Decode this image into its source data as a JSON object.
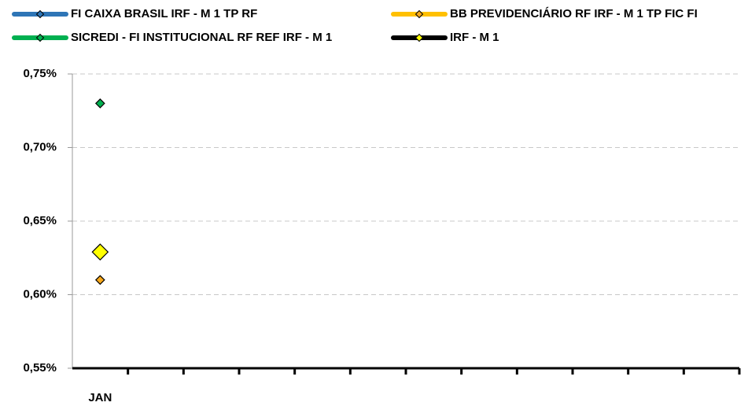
{
  "chart_data": {
    "type": "line",
    "categories": [
      "JAN",
      null,
      null,
      null,
      null,
      null,
      null,
      null,
      null,
      null,
      null,
      null
    ],
    "series": [
      {
        "name": "FI CAIXA BRASIL IRF - M 1 TP RF",
        "color": "#2e75b6",
        "marker_color": "#2e75b6",
        "marker": "small",
        "values": [
          0.63,
          null,
          null,
          null,
          null,
          null,
          null,
          null,
          null,
          null,
          null,
          null
        ]
      },
      {
        "name": "BB PREVIDENCIÁRIO RF IRF - M 1 TP FIC FI",
        "color": "#ffc000",
        "marker_color": "#f7a81b",
        "marker": "small",
        "values": [
          0.61,
          null,
          null,
          null,
          null,
          null,
          null,
          null,
          null,
          null,
          null,
          null
        ]
      },
      {
        "name": "SICREDI - FI INSTITUCIONAL RF REF IRF - M 1",
        "color": "#00b050",
        "marker_color": "#00b050",
        "marker": "small",
        "values": [
          0.73,
          null,
          null,
          null,
          null,
          null,
          null,
          null,
          null,
          null,
          null,
          null
        ]
      },
      {
        "name": "IRF - M 1",
        "color": "#000000",
        "marker_color": "#ffff00",
        "marker": "large",
        "values": [
          0.629,
          null,
          null,
          null,
          null,
          null,
          null,
          null,
          null,
          null,
          null,
          null
        ]
      }
    ],
    "ylim": [
      0.55,
      0.75
    ],
    "yticks": [
      {
        "value": 0.55,
        "label": "0,55%"
      },
      {
        "value": 0.6,
        "label": "0,60%"
      },
      {
        "value": 0.65,
        "label": "0,65%"
      },
      {
        "value": 0.7,
        "label": "0,70%"
      },
      {
        "value": 0.75,
        "label": "0,75%"
      }
    ],
    "grid": true,
    "legend": "top"
  }
}
